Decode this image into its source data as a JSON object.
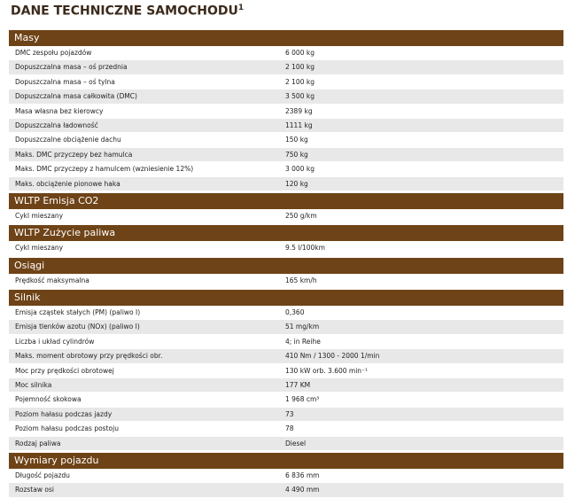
{
  "header": {
    "title": "DANE TECHNICZNE SAMOCHODU",
    "title_sup": "1"
  },
  "sections": [
    {
      "title": "Masy",
      "rows": [
        [
          "DMC zespołu pojazdów",
          "6 000 kg"
        ],
        [
          "Dopuszczalna masa – oś przednia",
          "2 100 kg"
        ],
        [
          "Dopuszczalna masa – oś tylna",
          "2 100 kg"
        ],
        [
          "Dopuszczalna masa całkowita (DMC)",
          "3 500 kg"
        ],
        [
          "Masa własna bez kierowcy",
          "2389 kg"
        ],
        [
          "Dopuszczalna ładowność",
          "1111 kg"
        ],
        [
          "Dopuszczalne obciążenie dachu",
          "150 kg"
        ],
        [
          "Maks. DMC przyczepy bez hamulca",
          "750 kg"
        ],
        [
          "Maks. DMC przyczepy z hamulcem (wzniesienie 12%)",
          "3 000 kg"
        ],
        [
          "Maks. obciążenie pionowe haka",
          "120 kg"
        ]
      ]
    },
    {
      "title": "WLTP Emisja CO2",
      "rows": [
        [
          "Cykl mieszany",
          "250 g/km"
        ]
      ]
    },
    {
      "title": "WLTP Zużycie paliwa",
      "rows": [
        [
          "Cykl mieszany",
          "9.5 l/100km"
        ]
      ]
    },
    {
      "title": "Osiągi",
      "rows": [
        [
          "Prędkość maksymalna",
          "165 km/h"
        ]
      ]
    },
    {
      "title": "Silnik",
      "rows": [
        [
          "Emisja cząstek stałych (PM) (paliwo I)",
          "0,360"
        ],
        [
          "Emisja tlenków azotu (NOx) (paliwo I)",
          "51 mg/km"
        ],
        [
          "Liczba i układ cylindrów",
          "4; in Reihe"
        ],
        [
          "Maks. moment obrotowy przy prędkości obr.",
          "410 Nm / 1300 - 2000 1/min"
        ],
        [
          "Moc przy prędkości obrotowej",
          "130 kW orb. 3.600 min⁻¹"
        ],
        [
          "Moc silnika",
          "177 KM"
        ],
        [
          "Pojemność skokowa",
          "1 968 cm³"
        ],
        [
          "Poziom hałasu podczas jazdy",
          "73"
        ],
        [
          "Poziom hałasu podczas postoju",
          "78"
        ],
        [
          "Rodzaj paliwa",
          "Diesel"
        ]
      ]
    },
    {
      "title": "Wymiary pojazdu",
      "rows": [
        [
          "Długość pojazdu",
          "6 836 mm"
        ],
        [
          "Rozstaw osi",
          "4 490 mm"
        ]
      ]
    }
  ]
}
